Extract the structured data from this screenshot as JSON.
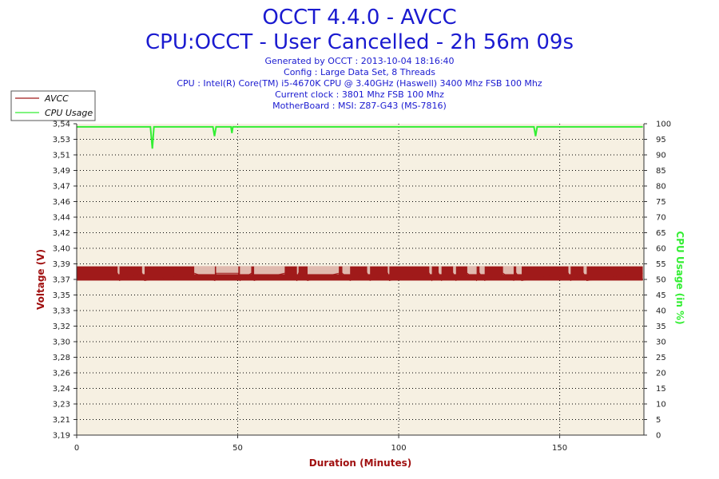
{
  "header": {
    "title": "OCCT 4.4.0 - AVCC",
    "subtitle": "CPU:OCCT - User Cancelled - 2h 56m 09s",
    "info": [
      "Generated by OCCT : 2013-10-04 18:16:40",
      "Config : Large Data Set, 8 Threads",
      "CPU : Intel(R) Core(TM) i5-4670K CPU @ 3.40GHz (Haswell) 3400 Mhz FSB 100 Mhz",
      "Current clock : 3801 Mhz FSB 100 Mhz",
      "MotherBoard : MSI: Z87-G43 (MS-7816)"
    ]
  },
  "colors": {
    "plot_background": "#f6f0e2",
    "grid": "#000000",
    "avcc": "#a01a1a",
    "cpu_usage": "#33ee33",
    "title": "#1a1ad0",
    "axis_title_left": "#a01010",
    "axis_title_right": "#33ee33"
  },
  "chart_data": {
    "type": "line",
    "title": "OCCT 4.4.0 - AVCC",
    "xlabel": "Duration (Minutes)",
    "ylabel": "Voltage (V)",
    "y2label": "CPU Usage (in %)",
    "xlim": [
      0,
      176.15
    ],
    "ylim": [
      3.19,
      3.54
    ],
    "y2lim": [
      0,
      100
    ],
    "x_ticks": [
      "0",
      "50",
      "100",
      "150"
    ],
    "x_tick_values": [
      0,
      50,
      100,
      150
    ],
    "y_ticks": [
      "3,19",
      "3,21",
      "3,23",
      "3,24",
      "3,26",
      "3,28",
      "3,30",
      "3,32",
      "3,33",
      "3,35",
      "3,37",
      "3,39",
      "3,40",
      "3,42",
      "3,44",
      "3,46",
      "3,47",
      "3,49",
      "3,51",
      "3,53",
      "3,54"
    ],
    "y2_ticks": [
      "0",
      "5",
      "10",
      "15",
      "20",
      "25",
      "30",
      "35",
      "40",
      "45",
      "50",
      "55",
      "60",
      "65",
      "70",
      "75",
      "80",
      "85",
      "90",
      "95",
      "100"
    ],
    "grid": true,
    "legend_position": "top-left",
    "series": [
      {
        "name": "AVCC",
        "axis": "left",
        "low": 3.3637,
        "high": 3.3797,
        "x": [
          0,
          12.7,
          13.3,
          20.3,
          21.1,
          36.5,
          42.9,
          43.3,
          50.2,
          50.7,
          54.2,
          55.1,
          64.6,
          68.4,
          68.9,
          71.7,
          81.4,
          82.5,
          84.9,
          90.2,
          91.1,
          96.6,
          97.1,
          109.5,
          110.3,
          112.4,
          113.3,
          116.9,
          117.8,
          121.3,
          124.2,
          125.1,
          126.7,
          132.4,
          135.7,
          136.5,
          138.2,
          152.7,
          153.4,
          157.4,
          158.4,
          175.8
        ],
        "values": [
          3.372,
          3.372,
          3.3637,
          3.372,
          3.3637,
          3.372,
          3.3637,
          3.372,
          3.372,
          3.3637,
          3.372,
          3.3637,
          3.372,
          3.3637,
          3.372,
          3.3637,
          3.372,
          3.372,
          3.3637,
          3.372,
          3.3637,
          3.372,
          3.3637,
          3.372,
          3.3637,
          3.372,
          3.3637,
          3.372,
          3.3637,
          3.372,
          3.3637,
          3.372,
          3.3637,
          3.372,
          3.3637,
          3.372,
          3.3637,
          3.372,
          3.3637,
          3.372,
          3.3637,
          3.372
        ]
      },
      {
        "name": "CPU Usage",
        "axis": "right",
        "x": [
          0,
          22.9,
          23.5,
          24.0,
          42.3,
          42.8,
          43.3,
          47.9,
          48.2,
          48.5,
          142.0,
          142.5,
          143.0,
          175.8
        ],
        "values": [
          99,
          99,
          92,
          99,
          99,
          96,
          99,
          99,
          97,
          99,
          99,
          96,
          99,
          99
        ]
      }
    ]
  }
}
